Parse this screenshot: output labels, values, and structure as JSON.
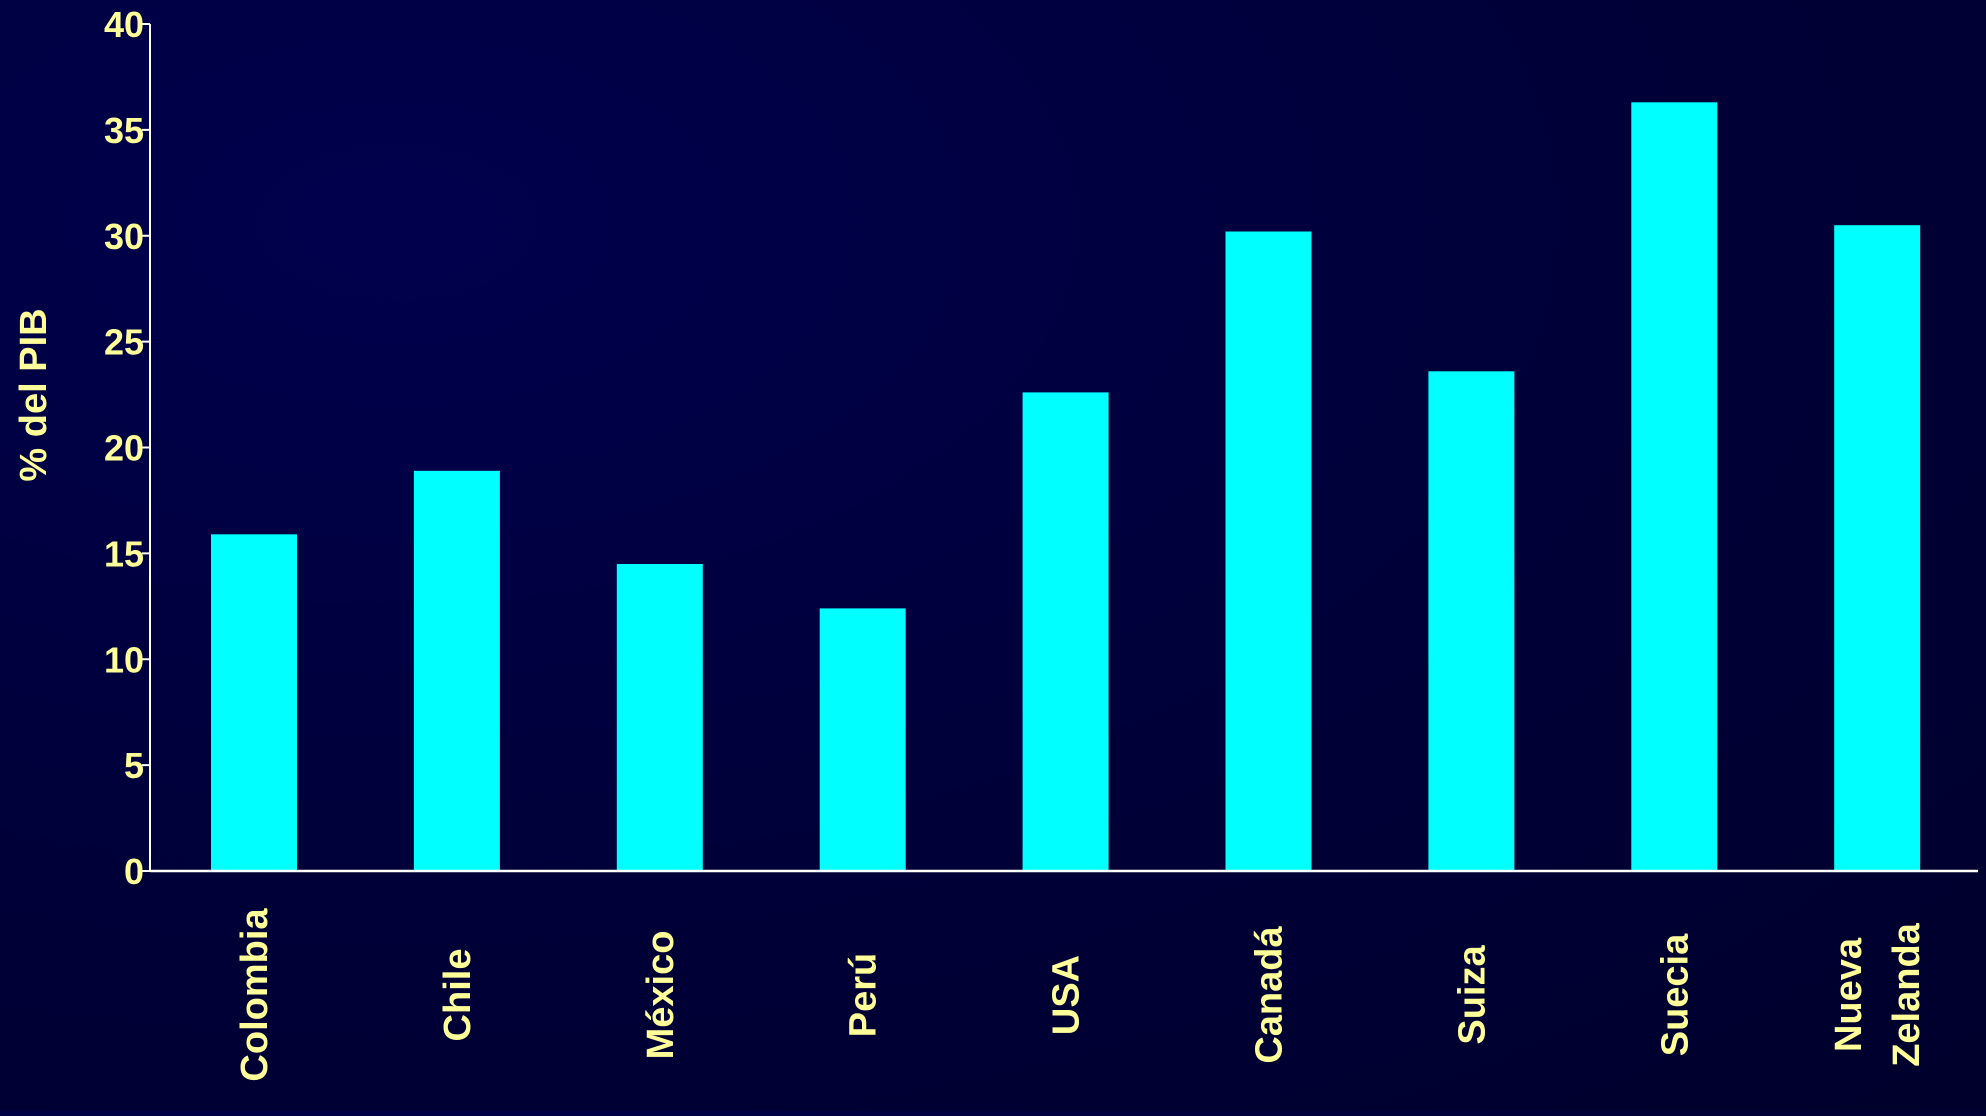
{
  "chart_data": {
    "type": "bar",
    "title": "",
    "xlabel": "",
    "ylabel": "% del PIB",
    "ylim": [
      0,
      40
    ],
    "yticks": [
      0,
      5,
      10,
      15,
      20,
      25,
      30,
      35,
      40
    ],
    "categories": [
      "Colombia",
      "Chile",
      "México",
      "Perú",
      "USA",
      "Canadá",
      "Suiza",
      "Suecia",
      "Nueva Zelanda"
    ],
    "category_label_lines": [
      [
        "Colombia"
      ],
      [
        "Chile"
      ],
      [
        "México"
      ],
      [
        "Perú"
      ],
      [
        "USA"
      ],
      [
        "Canadá"
      ],
      [
        "Suiza"
      ],
      [
        "Suecia"
      ],
      [
        "Nueva",
        "Zelanda"
      ]
    ],
    "series": [
      {
        "values": [
          15.9,
          18.9,
          14.5,
          12.4,
          22.6,
          30.2,
          23.6,
          36.3,
          30.5
        ]
      }
    ],
    "grid": false,
    "legend": "none",
    "colors": {
      "bar": "#00ffff",
      "text": "#ffff99",
      "axis": "#ffffff"
    }
  }
}
